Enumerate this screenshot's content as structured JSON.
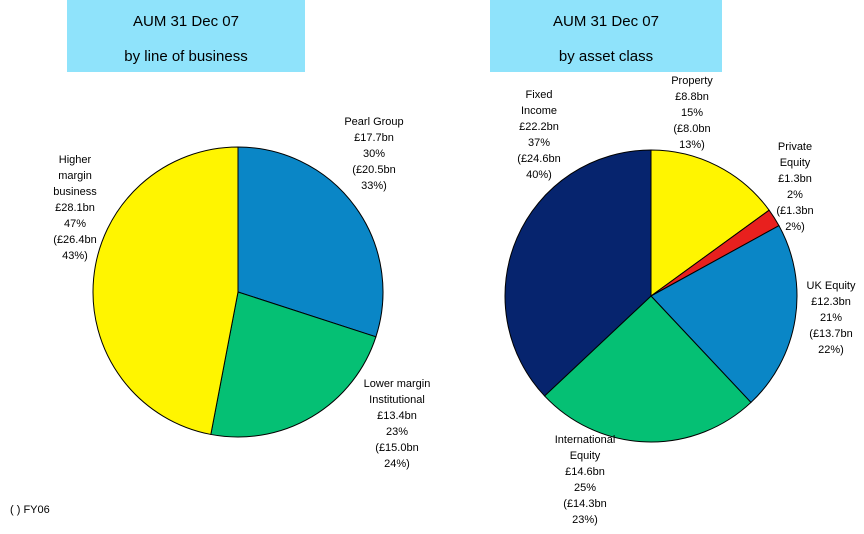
{
  "chart_data": [
    {
      "type": "pie",
      "title": "AUM 31 Dec 07",
      "subtitle": "by line of business",
      "categories": [
        [
          "Pearl Group"
        ],
        [
          "Lower margin",
          "Institutional"
        ],
        [
          "Higher",
          "margin",
          "business"
        ]
      ],
      "values": [
        30,
        23,
        47
      ],
      "value_labels": [
        "30%",
        "23%",
        "47%"
      ],
      "amount_labels": [
        "£17.7bn",
        "£13.4bn",
        "£28.1bn"
      ],
      "fy06_labels": [
        [
          "(£20.5bn",
          "33%)"
        ],
        [
          "(£15.0bn",
          "24%)"
        ],
        [
          "(£26.4bn",
          "43%)"
        ]
      ],
      "colors": [
        "#0a86c6",
        "#05c074",
        "#fff500"
      ]
    },
    {
      "type": "pie",
      "title": "AUM 31 Dec 07",
      "subtitle": "by asset class",
      "categories": [
        [
          "Property"
        ],
        [
          "Private",
          "Equity"
        ],
        [
          "UK Equity"
        ],
        [
          "International",
          "Equity"
        ],
        [
          "Fixed",
          "Income"
        ]
      ],
      "values": [
        15,
        2,
        21,
        25,
        37
      ],
      "value_labels": [
        "15%",
        "2%",
        "21%",
        "25%",
        "37%"
      ],
      "amount_labels": [
        "£8.8bn",
        "£1.3bn",
        "£12.3bn",
        "£14.6bn",
        "£22.2bn"
      ],
      "fy06_labels": [
        [
          "(£8.0bn",
          "13%)"
        ],
        [
          "(£1.3bn",
          "2%)"
        ],
        [
          "(£13.7bn",
          "22%)"
        ],
        [
          "(£14.3bn",
          "23%)"
        ],
        [
          "(£24.6bn",
          "40%)"
        ]
      ],
      "colors": [
        "#fff500",
        "#e8201e",
        "#0a86c6",
        "#05c074",
        "#06246e"
      ]
    }
  ],
  "footnote": "( ) FY06"
}
